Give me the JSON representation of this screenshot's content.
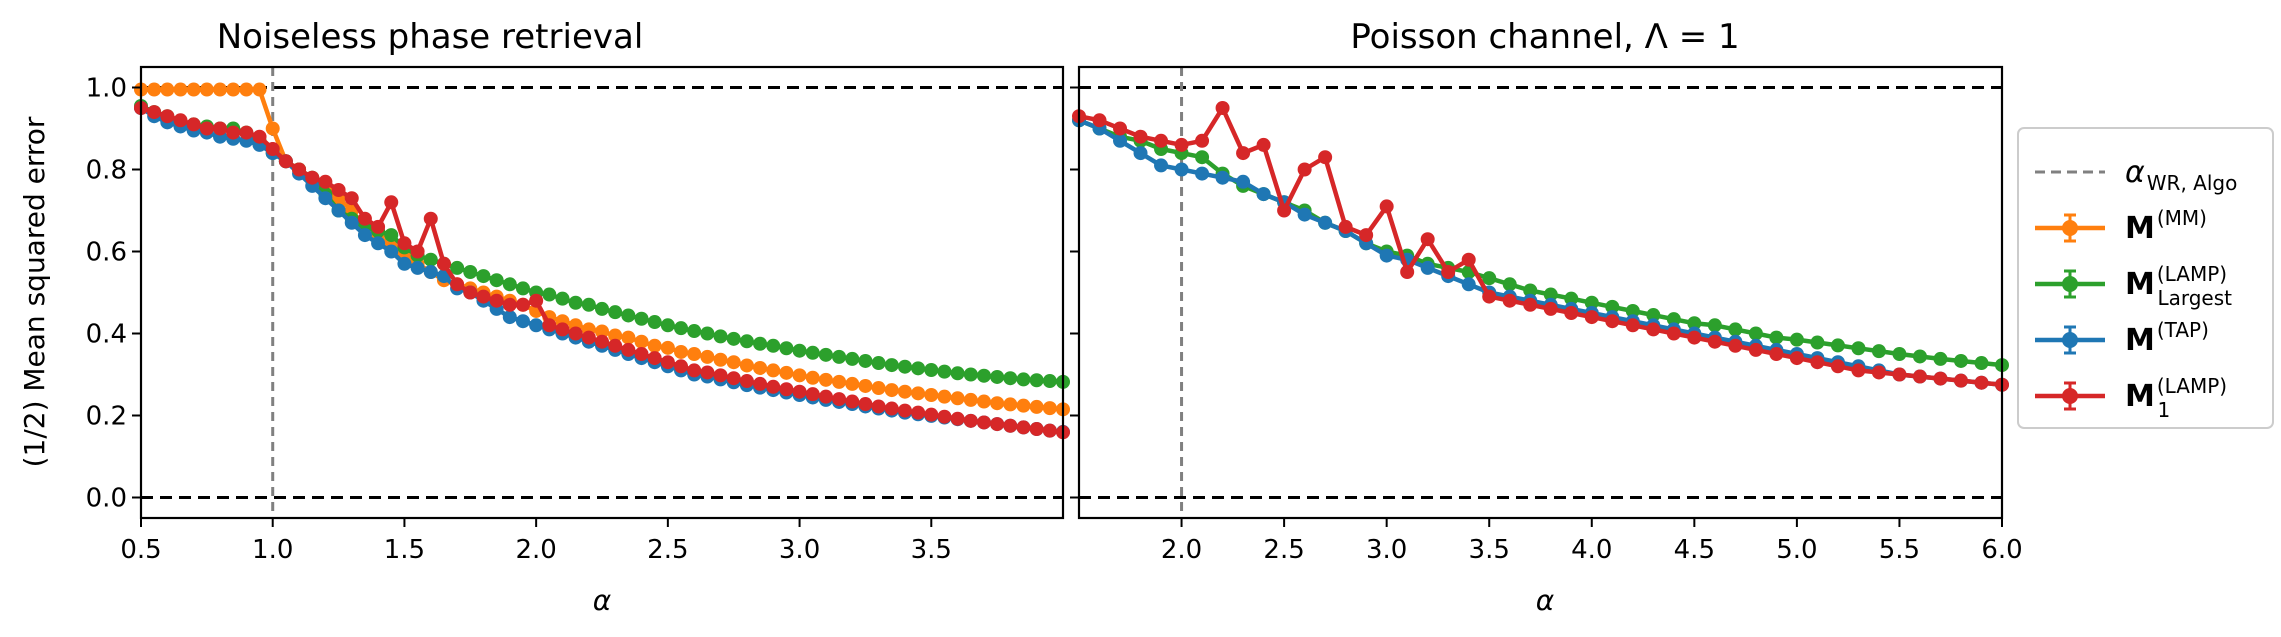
{
  "chart_data": [
    {
      "type": "line",
      "title": "Noiseless phase retrieval",
      "xlabel": "α",
      "ylabel": "(1/2) Mean squared error",
      "xlim": [
        0.5,
        4.0
      ],
      "ylim": [
        -0.05,
        1.05
      ],
      "xticks": [
        "0.5",
        "1.0",
        "1.5",
        "2.0",
        "2.5",
        "3.0",
        "3.5"
      ],
      "yticks": [
        "0.0",
        "0.2",
        "0.4",
        "0.6",
        "0.8",
        "1.0"
      ],
      "hlines": [
        0.0,
        1.0
      ],
      "vline": 1.0,
      "x": [
        0.5,
        0.55,
        0.6,
        0.65,
        0.7,
        0.75,
        0.8,
        0.85,
        0.9,
        0.95,
        1.0,
        1.05,
        1.1,
        1.15,
        1.2,
        1.25,
        1.3,
        1.35,
        1.4,
        1.45,
        1.5,
        1.55,
        1.6,
        1.65,
        1.7,
        1.75,
        1.8,
        1.85,
        1.9,
        1.95,
        2.0,
        2.05,
        2.1,
        2.15,
        2.2,
        2.25,
        2.3,
        2.35,
        2.4,
        2.45,
        2.5,
        2.55,
        2.6,
        2.65,
        2.7,
        2.75,
        2.8,
        2.85,
        2.9,
        2.95,
        3.0,
        3.05,
        3.1,
        3.15,
        3.2,
        3.25,
        3.3,
        3.35,
        3.4,
        3.45,
        3.5,
        3.55,
        3.6,
        3.65,
        3.7,
        3.75,
        3.8,
        3.85,
        3.9,
        3.95,
        4.0
      ],
      "series": [
        {
          "name": "M(MM)",
          "color": "#ff7f0e",
          "values": [
            0.995,
            0.995,
            0.995,
            0.995,
            0.995,
            0.995,
            0.995,
            0.995,
            0.995,
            0.995,
            0.9,
            0.82,
            0.8,
            0.78,
            0.76,
            0.73,
            0.7,
            0.66,
            0.64,
            0.61,
            0.59,
            0.57,
            0.55,
            0.53,
            0.52,
            0.51,
            0.5,
            0.49,
            0.48,
            0.47,
            0.455,
            0.44,
            0.43,
            0.42,
            0.41,
            0.405,
            0.395,
            0.39,
            0.38,
            0.37,
            0.365,
            0.355,
            0.35,
            0.343,
            0.336,
            0.33,
            0.322,
            0.316,
            0.31,
            0.304,
            0.298,
            0.292,
            0.287,
            0.282,
            0.277,
            0.272,
            0.267,
            0.262,
            0.258,
            0.254,
            0.25,
            0.246,
            0.242,
            0.238,
            0.234,
            0.23,
            0.227,
            0.224,
            0.221,
            0.218,
            0.215
          ]
        },
        {
          "name": "M(LAMP)Largest",
          "color": "#2ca02c",
          "values": [
            0.955,
            0.94,
            0.93,
            0.915,
            0.91,
            0.905,
            0.9,
            0.9,
            0.89,
            0.87,
            0.84,
            0.82,
            0.8,
            0.78,
            0.74,
            0.7,
            0.68,
            0.66,
            0.65,
            0.64,
            0.61,
            0.59,
            0.58,
            0.57,
            0.56,
            0.55,
            0.54,
            0.53,
            0.52,
            0.51,
            0.5,
            0.495,
            0.485,
            0.475,
            0.47,
            0.46,
            0.452,
            0.444,
            0.436,
            0.428,
            0.42,
            0.413,
            0.406,
            0.4,
            0.393,
            0.387,
            0.381,
            0.375,
            0.37,
            0.364,
            0.358,
            0.353,
            0.348,
            0.343,
            0.338,
            0.333,
            0.328,
            0.323,
            0.319,
            0.315,
            0.311,
            0.307,
            0.303,
            0.3,
            0.297,
            0.294,
            0.291,
            0.288,
            0.286,
            0.284,
            0.282
          ]
        },
        {
          "name": "M(TAP)",
          "color": "#1f77b4",
          "values": [
            0.95,
            0.93,
            0.915,
            0.905,
            0.895,
            0.89,
            0.88,
            0.875,
            0.87,
            0.86,
            0.84,
            0.82,
            0.79,
            0.76,
            0.73,
            0.7,
            0.67,
            0.64,
            0.62,
            0.6,
            0.57,
            0.56,
            0.55,
            0.54,
            0.51,
            0.5,
            0.48,
            0.46,
            0.44,
            0.43,
            0.42,
            0.41,
            0.4,
            0.39,
            0.38,
            0.37,
            0.36,
            0.35,
            0.34,
            0.33,
            0.32,
            0.31,
            0.3,
            0.295,
            0.288,
            0.281,
            0.274,
            0.268,
            0.262,
            0.256,
            0.25,
            0.244,
            0.238,
            0.233,
            0.228,
            0.222,
            0.217,
            0.212,
            0.207,
            0.203,
            0.199,
            0.195,
            0.191,
            0.187,
            0.183,
            0.179,
            0.175,
            0.171,
            0.167,
            0.163,
            0.16
          ]
        },
        {
          "name": "M(LAMP)1",
          "color": "#d62728",
          "values": [
            0.95,
            0.94,
            0.93,
            0.92,
            0.91,
            0.9,
            0.9,
            0.89,
            0.89,
            0.88,
            0.85,
            0.82,
            0.8,
            0.78,
            0.77,
            0.75,
            0.73,
            0.68,
            0.66,
            0.72,
            0.62,
            0.6,
            0.68,
            0.57,
            0.52,
            0.5,
            0.49,
            0.48,
            0.47,
            0.47,
            0.48,
            0.42,
            0.41,
            0.4,
            0.39,
            0.38,
            0.37,
            0.36,
            0.35,
            0.34,
            0.33,
            0.32,
            0.31,
            0.305,
            0.298,
            0.291,
            0.284,
            0.277,
            0.27,
            0.264,
            0.258,
            0.252,
            0.246,
            0.24,
            0.234,
            0.228,
            0.222,
            0.217,
            0.212,
            0.207,
            0.202,
            0.197,
            0.192,
            0.187,
            0.183,
            0.179,
            0.175,
            0.171,
            0.167,
            0.163,
            0.159
          ]
        }
      ]
    },
    {
      "type": "line",
      "title": "Poisson channel, Λ = 1",
      "xlabel": "α",
      "xlim": [
        1.5,
        6.0
      ],
      "ylim": [
        -0.05,
        1.05
      ],
      "xticks": [
        "2.0",
        "2.5",
        "3.0",
        "3.5",
        "4.0",
        "4.5",
        "5.0",
        "5.5",
        "6.0"
      ],
      "hlines": [
        0.0,
        1.0
      ],
      "vline": 2.0,
      "x": [
        1.5,
        1.6,
        1.7,
        1.8,
        1.9,
        2.0,
        2.1,
        2.2,
        2.3,
        2.4,
        2.5,
        2.6,
        2.7,
        2.8,
        2.9,
        3.0,
        3.1,
        3.2,
        3.3,
        3.4,
        3.5,
        3.6,
        3.7,
        3.8,
        3.9,
        4.0,
        4.1,
        4.2,
        4.3,
        4.4,
        4.5,
        4.6,
        4.7,
        4.8,
        4.9,
        5.0,
        5.1,
        5.2,
        5.3,
        5.4,
        5.5,
        5.6,
        5.7,
        5.8,
        5.9,
        6.0
      ],
      "series": [
        {
          "name": "M(LAMP)Largest",
          "color": "#2ca02c",
          "values": [
            0.92,
            0.9,
            0.88,
            0.87,
            0.85,
            0.84,
            0.83,
            0.79,
            0.76,
            0.74,
            0.72,
            0.7,
            0.67,
            0.65,
            0.62,
            0.6,
            0.59,
            0.57,
            0.56,
            0.55,
            0.535,
            0.52,
            0.505,
            0.495,
            0.485,
            0.475,
            0.465,
            0.455,
            0.445,
            0.435,
            0.425,
            0.42,
            0.41,
            0.4,
            0.39,
            0.385,
            0.378,
            0.371,
            0.364,
            0.357,
            0.35,
            0.344,
            0.338,
            0.333,
            0.328,
            0.323
          ]
        },
        {
          "name": "M(TAP)",
          "color": "#1f77b4",
          "values": [
            0.92,
            0.9,
            0.87,
            0.84,
            0.81,
            0.8,
            0.79,
            0.78,
            0.77,
            0.74,
            0.72,
            0.69,
            0.67,
            0.65,
            0.62,
            0.59,
            0.58,
            0.56,
            0.54,
            0.52,
            0.5,
            0.49,
            0.48,
            0.47,
            0.46,
            0.45,
            0.44,
            0.43,
            0.42,
            0.41,
            0.4,
            0.39,
            0.38,
            0.37,
            0.36,
            0.35,
            0.34,
            0.33,
            0.32,
            0.31,
            0.3,
            0.295,
            0.29,
            0.285,
            0.28,
            0.275
          ]
        },
        {
          "name": "M(LAMP)1",
          "color": "#d62728",
          "values": [
            0.93,
            0.92,
            0.9,
            0.88,
            0.87,
            0.86,
            0.87,
            0.95,
            0.84,
            0.86,
            0.7,
            0.8,
            0.83,
            0.66,
            0.64,
            0.71,
            0.55,
            0.63,
            0.55,
            0.58,
            0.49,
            0.48,
            0.47,
            0.46,
            0.45,
            0.44,
            0.43,
            0.42,
            0.41,
            0.4,
            0.39,
            0.38,
            0.37,
            0.36,
            0.35,
            0.34,
            0.33,
            0.32,
            0.31,
            0.305,
            0.3,
            0.295,
            0.29,
            0.285,
            0.28,
            0.275
          ]
        }
      ]
    }
  ],
  "legend": {
    "placement": "outside-right",
    "entries": [
      {
        "key": "wr",
        "label_main": "α",
        "label_sub": "WR, Algo",
        "label_sup": "",
        "style": "dashed",
        "color": "#808080"
      },
      {
        "key": "mm",
        "label_main": "M",
        "label_sub": "",
        "label_sup": "(MM)",
        "style": "errorbar",
        "color": "#ff7f0e"
      },
      {
        "key": "lamp_largest",
        "label_main": "M",
        "label_sub": "Largest",
        "label_sup": "(LAMP)",
        "style": "errorbar",
        "color": "#2ca02c"
      },
      {
        "key": "tap",
        "label_main": "M",
        "label_sub": "",
        "label_sup": "(TAP)",
        "style": "errorbar",
        "color": "#1f77b4"
      },
      {
        "key": "lamp_1",
        "label_main": "M",
        "label_sub": "1",
        "label_sup": "(LAMP)",
        "style": "errorbar",
        "color": "#d62728"
      }
    ]
  }
}
